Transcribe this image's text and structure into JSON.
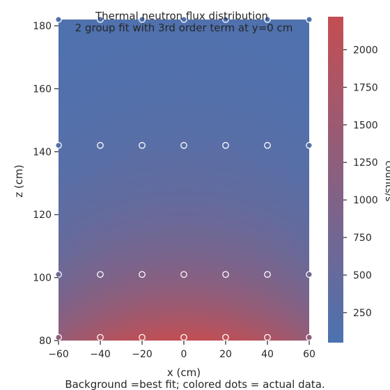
{
  "chart_data": {
    "type": "heatmap",
    "title": "Thermal neutron flux distribution\n2 group fit with 3rd order term at y=0 cm",
    "title_lines": [
      "Thermal neutron flux distribution",
      "2 group fit with 3rd order term at y=0 cm"
    ],
    "xlabel": "x (cm)",
    "ylabel": "z (cm)",
    "caption": "Background =best fit; colored dots = actual data.",
    "colorbar_label": "counts/s",
    "xlim": [
      -60,
      60
    ],
    "ylim": [
      80,
      182
    ],
    "x_ticks": [
      -60,
      -40,
      -20,
      0,
      20,
      40,
      60
    ],
    "x_tick_labels": [
      "−60",
      "−40",
      "−20",
      "0",
      "20",
      "40",
      "60"
    ],
    "y_ticks": [
      80,
      100,
      120,
      140,
      160,
      180
    ],
    "y_tick_labels": [
      "80",
      "100",
      "120",
      "140",
      "160",
      "180"
    ],
    "colorbar_ticks": [
      250,
      500,
      750,
      1000,
      1250,
      1500,
      1750,
      2000
    ],
    "colorbar_tick_labels": [
      "250",
      "500",
      "750",
      "1000",
      "1250",
      "1500",
      "1750",
      "2000"
    ],
    "colorbar_range": [
      50,
      2220
    ],
    "colormap": {
      "low": "#4c72b0",
      "high": "#c44e52"
    },
    "fit_model": {
      "peak": 2220,
      "peak_z": 80,
      "extrap_half_width_x": 105,
      "decay_length_z": 28,
      "background": 60
    },
    "data_grid": {
      "x": [
        -60,
        -40,
        -20,
        0,
        20,
        40,
        60
      ],
      "z": [
        81,
        101,
        142,
        182
      ]
    },
    "grid": false
  }
}
